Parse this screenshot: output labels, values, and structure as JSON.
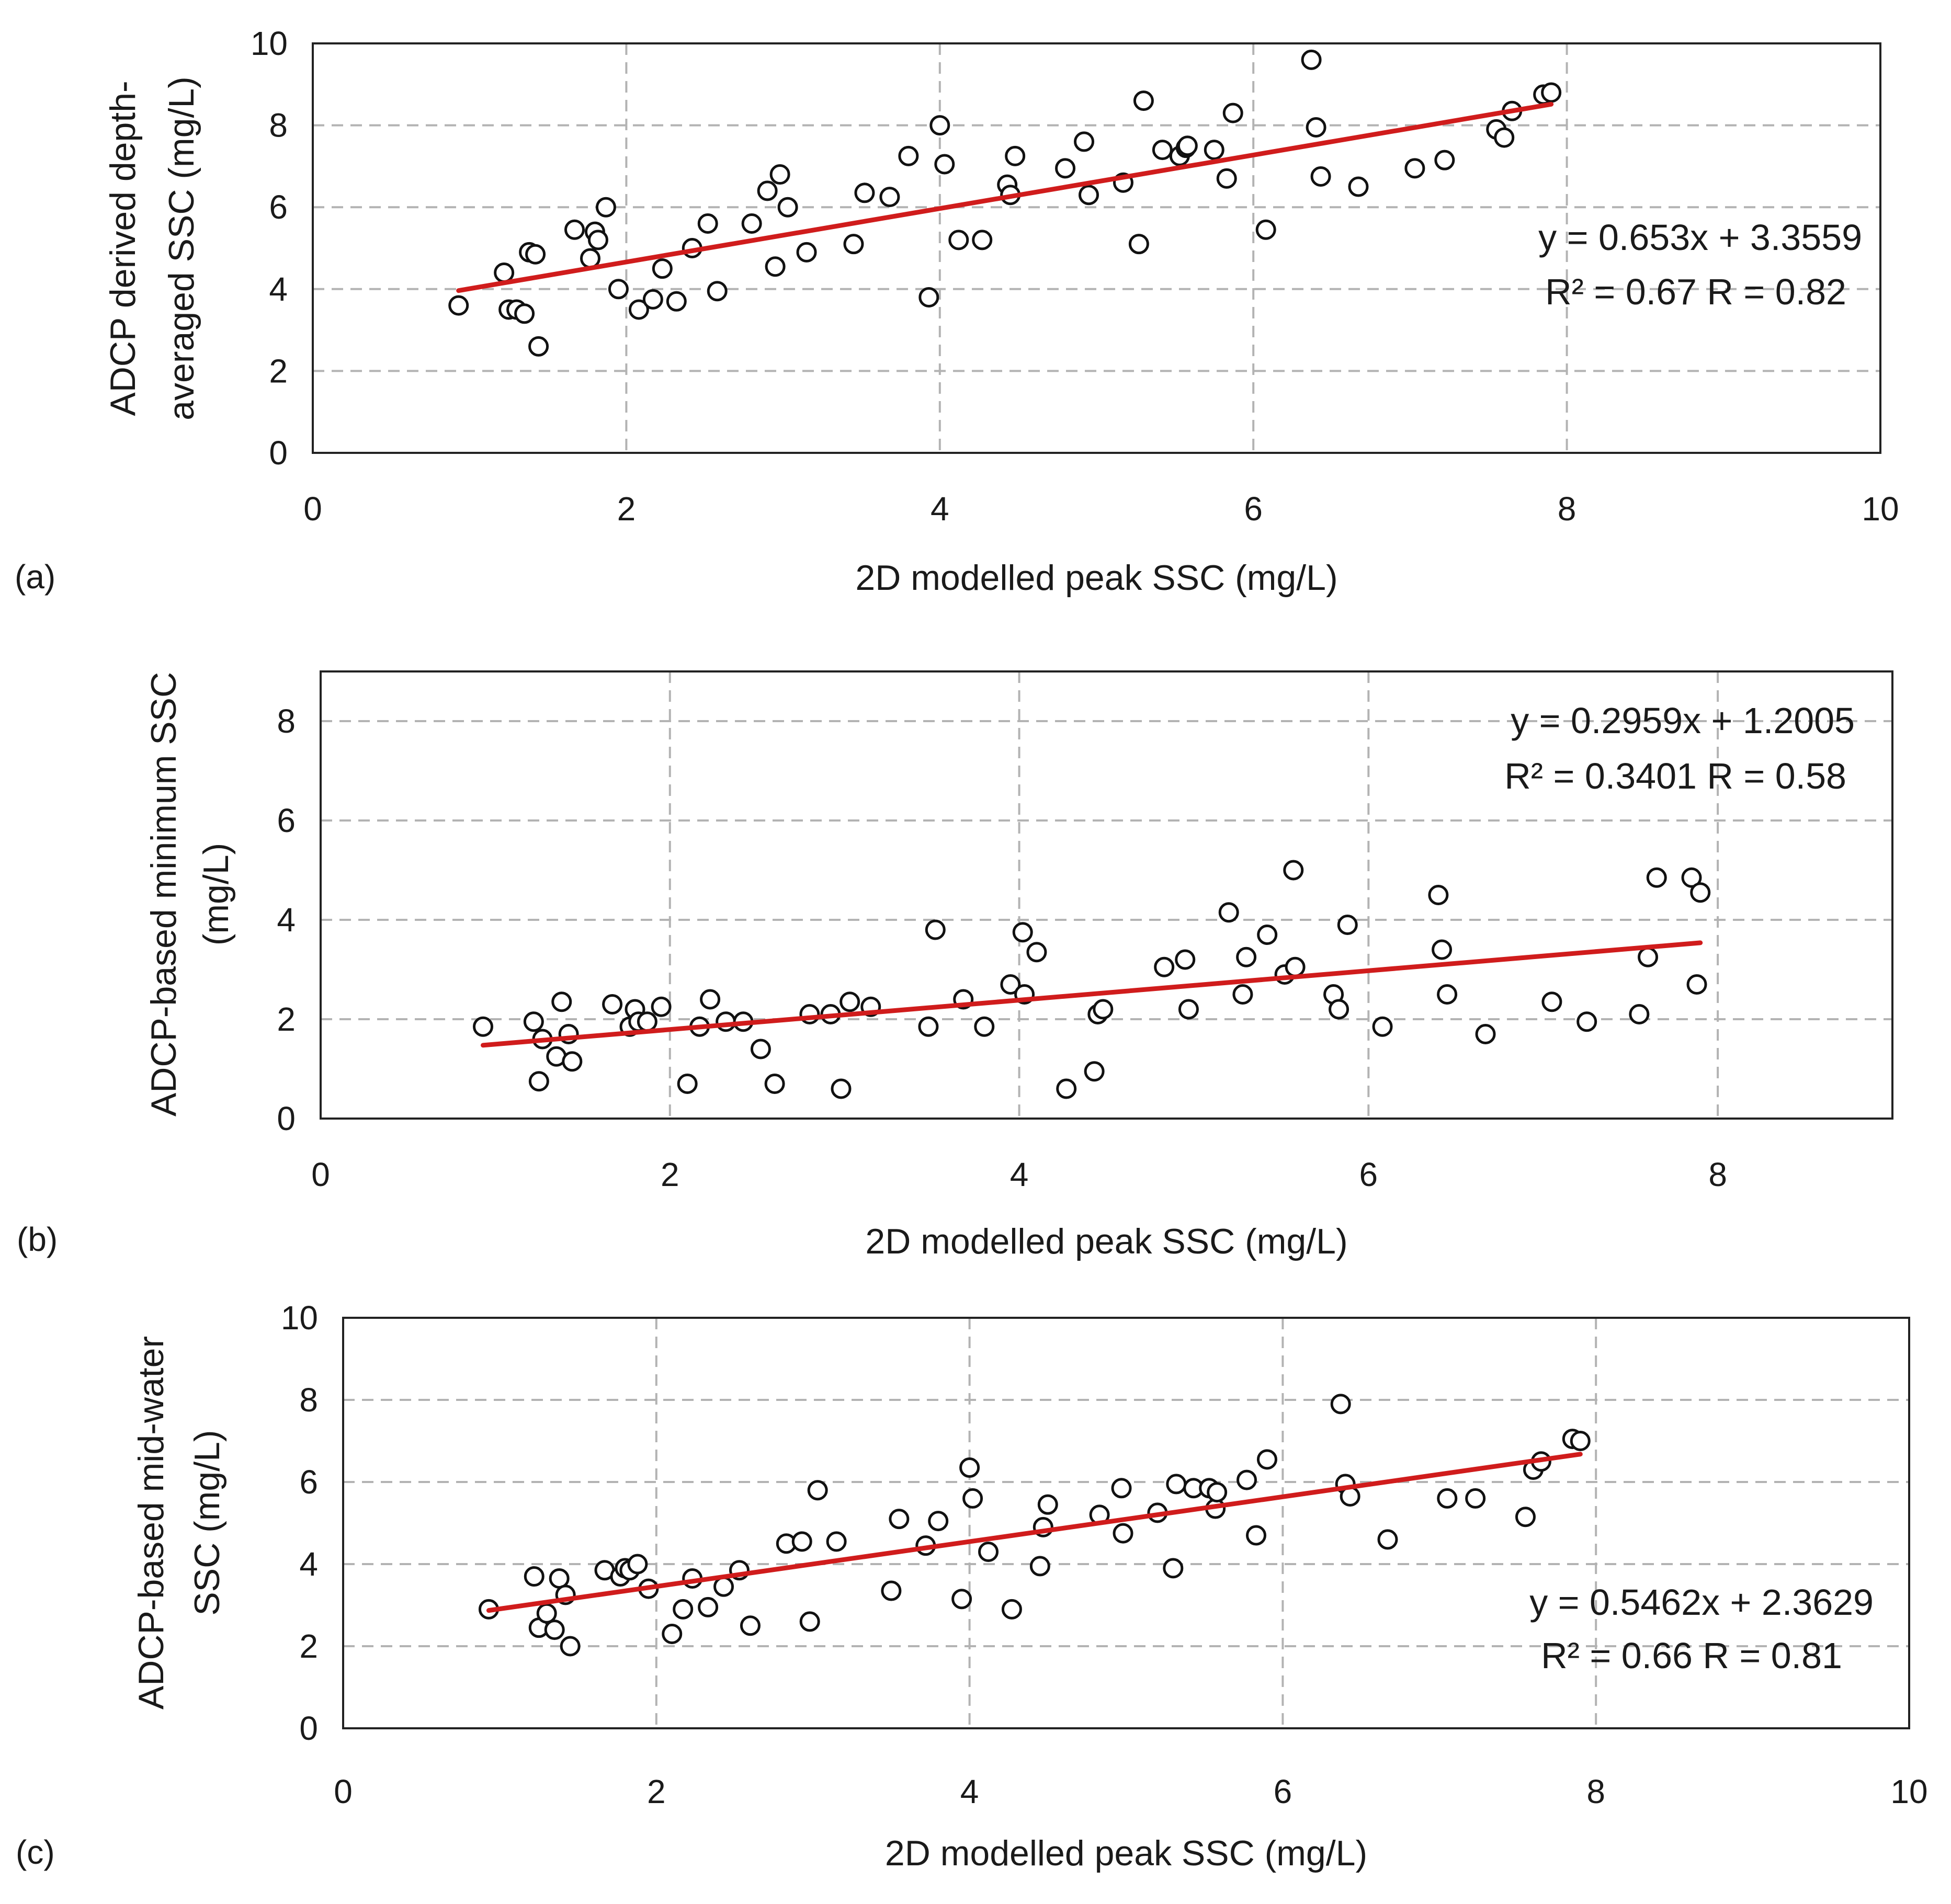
{
  "chart_data": [
    {
      "type": "scatter",
      "panel_label": "(a)",
      "xlabel": "2D modelled peak SSC (mg/L)",
      "ylabel_lines": [
        "ADCP derived depth-",
        "averaged SSC (mg/L)"
      ],
      "xlim": [
        0,
        10
      ],
      "ylim": [
        0,
        10
      ],
      "x_ticks": [
        0,
        2,
        4,
        6,
        8,
        10
      ],
      "y_ticks": [
        0,
        2,
        4,
        6,
        8,
        10
      ],
      "grid": true,
      "equation": "y = 0.653x + 3.3559",
      "r_text": "R² = 0.67 R = 0.82",
      "equation_position": "right-middle",
      "trendline": {
        "slope": 0.653,
        "intercept": 3.3559,
        "x_range": [
          0.93,
          7.9
        ]
      },
      "series": [
        {
          "name": "observations",
          "x": [
            0.93,
            1.22,
            1.25,
            1.3,
            1.35,
            1.38,
            1.42,
            1.44,
            1.67,
            1.77,
            1.8,
            1.82,
            1.87,
            1.95,
            2.08,
            2.17,
            2.23,
            2.32,
            2.42,
            2.52,
            2.58,
            2.8,
            2.9,
            2.95,
            2.98,
            3.03,
            3.15,
            3.45,
            3.52,
            3.68,
            3.8,
            3.93,
            4.0,
            4.03,
            4.12,
            4.27,
            4.43,
            4.45,
            4.48,
            4.8,
            4.92,
            4.95,
            5.17,
            5.27,
            5.3,
            5.42,
            5.53,
            5.57,
            5.58,
            5.75,
            5.83,
            5.87,
            6.08,
            6.37,
            6.4,
            6.43,
            6.67,
            7.03,
            7.22,
            7.55,
            7.6,
            7.65,
            7.85,
            7.9
          ],
          "y": [
            3.6,
            4.4,
            3.5,
            3.5,
            3.4,
            4.9,
            4.85,
            2.6,
            5.45,
            4.75,
            5.4,
            5.2,
            6.0,
            4.0,
            3.5,
            3.75,
            4.5,
            3.7,
            5.0,
            5.6,
            3.95,
            5.6,
            6.4,
            4.55,
            6.8,
            6.0,
            4.9,
            5.1,
            6.35,
            6.25,
            7.25,
            3.8,
            8.0,
            7.05,
            5.2,
            5.2,
            6.55,
            6.3,
            7.25,
            6.95,
            7.6,
            6.3,
            6.6,
            5.1,
            8.6,
            7.4,
            7.25,
            7.45,
            7.5,
            7.4,
            6.7,
            8.3,
            5.45,
            9.6,
            7.95,
            6.75,
            6.5,
            6.95,
            7.15,
            7.9,
            7.7,
            8.35,
            8.75,
            8.8
          ]
        }
      ]
    },
    {
      "type": "scatter",
      "panel_label": "(b)",
      "xlabel": "2D modelled peak SSC (mg/L)",
      "ylabel_lines": [
        "ADCP-based minimum SSC",
        "(mg/L)"
      ],
      "xlim": [
        0,
        9
      ],
      "ylim": [
        0,
        9
      ],
      "x_ticks": [
        0,
        2,
        4,
        6,
        8
      ],
      "y_ticks": [
        0,
        2,
        4,
        6,
        8
      ],
      "grid": true,
      "equation": "y = 0.2959x + 1.2005",
      "r_text": "R² = 0.3401 R = 0.58",
      "equation_position": "top-right",
      "trendline": {
        "slope": 0.2959,
        "intercept": 1.2005,
        "x_range": [
          0.93,
          7.9
        ]
      },
      "series": [
        {
          "name": "observations",
          "x": [
            0.93,
            1.22,
            1.25,
            1.27,
            1.35,
            1.38,
            1.42,
            1.44,
            1.67,
            1.77,
            1.8,
            1.82,
            1.87,
            1.95,
            2.1,
            2.17,
            2.23,
            2.32,
            2.42,
            2.52,
            2.6,
            2.8,
            2.92,
            2.98,
            3.03,
            3.15,
            3.48,
            3.52,
            3.68,
            3.8,
            3.95,
            4.02,
            4.03,
            4.1,
            4.27,
            4.43,
            4.45,
            4.48,
            4.83,
            4.95,
            4.97,
            5.2,
            5.28,
            5.3,
            5.42,
            5.52,
            5.57,
            5.58,
            5.8,
            5.83,
            5.88,
            6.08,
            6.4,
            6.42,
            6.45,
            6.67,
            7.05,
            7.25,
            7.55,
            7.6,
            7.65,
            7.85,
            7.88,
            7.9
          ],
          "y": [
            1.85,
            1.95,
            0.75,
            1.6,
            1.25,
            2.35,
            1.7,
            1.15,
            2.3,
            1.85,
            2.2,
            1.95,
            1.95,
            2.25,
            0.7,
            1.85,
            2.4,
            1.95,
            1.95,
            1.4,
            0.7,
            2.1,
            2.1,
            0.6,
            2.35,
            2.25,
            1.85,
            3.8,
            2.4,
            1.85,
            2.7,
            3.75,
            2.5,
            3.35,
            0.6,
            0.95,
            2.1,
            2.2,
            3.05,
            3.2,
            2.2,
            4.15,
            2.5,
            3.25,
            3.7,
            2.9,
            5.0,
            3.05,
            2.5,
            2.2,
            3.9,
            1.85,
            4.5,
            3.4,
            2.5,
            1.7,
            2.35,
            1.95,
            2.1,
            3.25,
            4.85,
            4.85,
            2.7,
            4.55
          ]
        }
      ]
    },
    {
      "type": "scatter",
      "panel_label": "(c)",
      "xlabel": "2D modelled peak SSC (mg/L)",
      "ylabel_lines": [
        "ADCP-based mid-water",
        "SSC (mg/L)"
      ],
      "xlim": [
        0,
        10
      ],
      "ylim": [
        0,
        10
      ],
      "x_ticks": [
        0,
        2,
        4,
        6,
        8,
        10
      ],
      "y_ticks": [
        0,
        2,
        4,
        6,
        8,
        10
      ],
      "grid": true,
      "equation": "y = 0.5462x + 2.3629",
      "r_text": "R² = 0.66 R = 0.81",
      "equation_position": "right-lower",
      "trendline": {
        "slope": 0.5462,
        "intercept": 2.3629,
        "x_range": [
          0.93,
          7.9
        ]
      },
      "series": [
        {
          "name": "observations",
          "x": [
            0.93,
            1.22,
            1.25,
            1.3,
            1.35,
            1.38,
            1.42,
            1.45,
            1.67,
            1.77,
            1.8,
            1.83,
            1.88,
            1.95,
            2.1,
            2.17,
            2.23,
            2.33,
            2.43,
            2.53,
            2.6,
            2.83,
            2.93,
            2.98,
            3.03,
            3.15,
            3.5,
            3.55,
            3.72,
            3.8,
            3.95,
            4.0,
            4.02,
            4.12,
            4.27,
            4.45,
            4.47,
            4.5,
            4.83,
            4.97,
            4.98,
            5.2,
            5.3,
            5.32,
            5.43,
            5.53,
            5.57,
            5.58,
            5.77,
            5.83,
            5.9,
            6.37,
            6.4,
            6.43,
            6.67,
            7.05,
            7.23,
            7.55,
            7.6,
            7.65,
            7.85,
            7.9
          ],
          "y": [
            2.9,
            3.7,
            2.45,
            2.8,
            2.4,
            3.65,
            3.25,
            2.0,
            3.85,
            3.7,
            3.9,
            3.85,
            4.0,
            3.4,
            2.3,
            2.9,
            3.65,
            2.95,
            3.45,
            3.85,
            2.5,
            4.5,
            4.55,
            2.6,
            5.8,
            4.55,
            3.35,
            5.1,
            4.45,
            5.05,
            3.15,
            6.35,
            5.6,
            4.3,
            2.9,
            3.95,
            4.9,
            5.45,
            5.2,
            5.85,
            4.75,
            5.25,
            3.9,
            5.95,
            5.85,
            5.85,
            5.35,
            5.75,
            6.05,
            4.7,
            6.55,
            7.9,
            5.95,
            5.65,
            4.6,
            5.6,
            5.6,
            5.15,
            6.3,
            6.5,
            7.05,
            7.0
          ]
        }
      ]
    }
  ]
}
